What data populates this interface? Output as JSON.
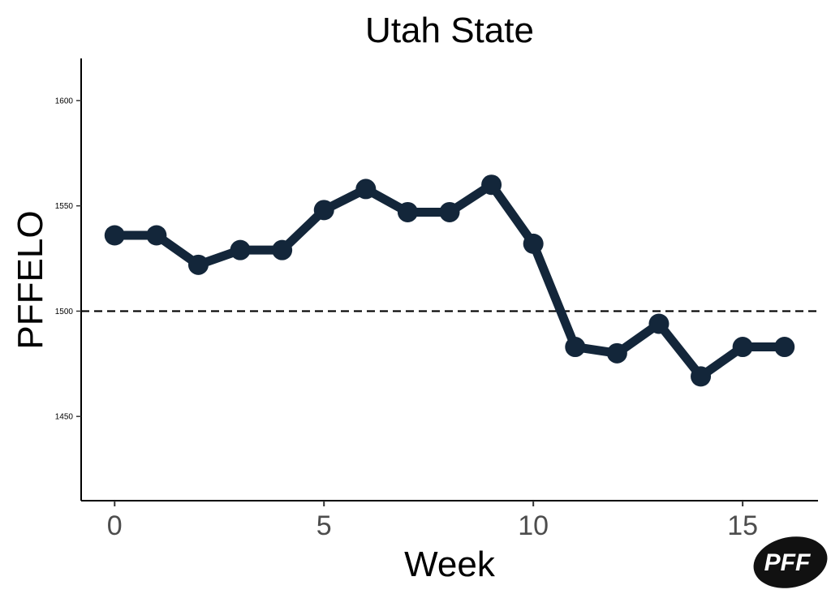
{
  "chart_data": {
    "type": "line",
    "title": "Utah State",
    "xlabel": "Week",
    "ylabel": "PFFELO",
    "x": [
      0,
      1,
      2,
      3,
      4,
      5,
      6,
      7,
      8,
      9,
      10,
      11,
      12,
      13,
      14,
      15,
      16
    ],
    "series": [
      {
        "values": [
          1536,
          1536,
          1522,
          1529,
          1529,
          1548,
          1558,
          1547,
          1547,
          1560,
          1532,
          1483,
          1480,
          1494,
          1469,
          1483,
          1483
        ]
      }
    ],
    "reference_line": 1500,
    "xlim": [
      -0.8,
      16.8
    ],
    "ylim": [
      1410,
      1620
    ],
    "xticks": [
      "0",
      "5",
      "10",
      "15"
    ],
    "yticks": [
      "1450",
      "1500",
      "1550",
      "1600"
    ],
    "grid": false,
    "line_color": "#13263a",
    "reference_line_color": "#000000"
  },
  "logo": {
    "text": "PFF",
    "color": "#111111"
  }
}
